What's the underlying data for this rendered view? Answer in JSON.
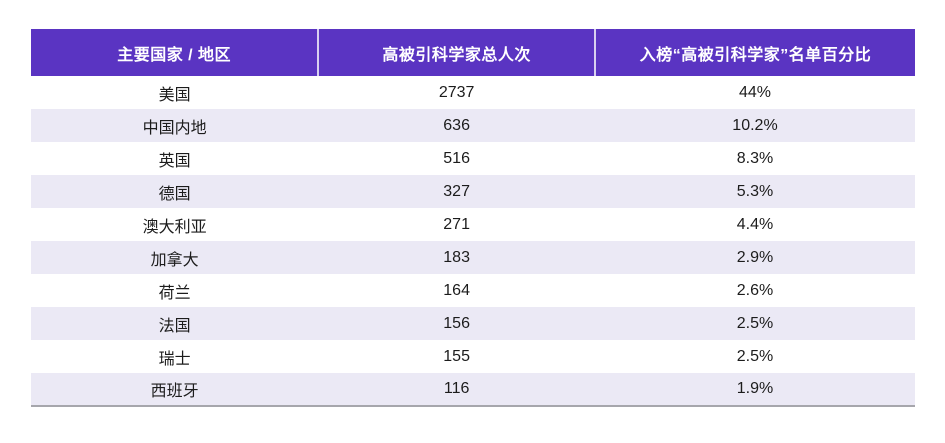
{
  "colors": {
    "header_bg": "#5a34c2",
    "header_text": "#ffffff",
    "stripe_bg": "#ebe9f5",
    "row_bg": "#ffffff",
    "body_text": "#1c1c1c",
    "bottom_border": "#a6a6ac",
    "header_divider": "#d8d0f0"
  },
  "table": {
    "headers": [
      "主要国家 / 地区",
      "高被引科学家总人次",
      "入榜“高被引科学家”名单百分比"
    ],
    "rows": [
      [
        "美国",
        "2737",
        "44%"
      ],
      [
        "中国内地",
        "636",
        "10.2%"
      ],
      [
        "英国",
        "516",
        "8.3%"
      ],
      [
        "德国",
        "327",
        "5.3%"
      ],
      [
        "澳大利亚",
        "271",
        "4.4%"
      ],
      [
        "加拿大",
        "183",
        "2.9%"
      ],
      [
        "荷兰",
        "164",
        "2.6%"
      ],
      [
        "法国",
        "156",
        "2.5%"
      ],
      [
        "瑞士",
        "155",
        "2.5%"
      ],
      [
        "西班牙",
        "116",
        "1.9%"
      ]
    ]
  },
  "chart_data": {
    "type": "table",
    "title": "",
    "columns": [
      "主要国家 / 地区",
      "高被引科学家总人次",
      "入榜“高被引科学家”名单百分比"
    ],
    "countries": [
      "美国",
      "中国内地",
      "英国",
      "德国",
      "澳大利亚",
      "加拿大",
      "荷兰",
      "法国",
      "瑞士",
      "西班牙"
    ],
    "total_scientists": [
      2737,
      636,
      516,
      327,
      271,
      183,
      164,
      156,
      155,
      116
    ],
    "list_percentage": [
      "44%",
      "10.2%",
      "8.3%",
      "5.3%",
      "4.4%",
      "2.9%",
      "2.6%",
      "2.5%",
      "2.5%",
      "1.9%"
    ]
  }
}
